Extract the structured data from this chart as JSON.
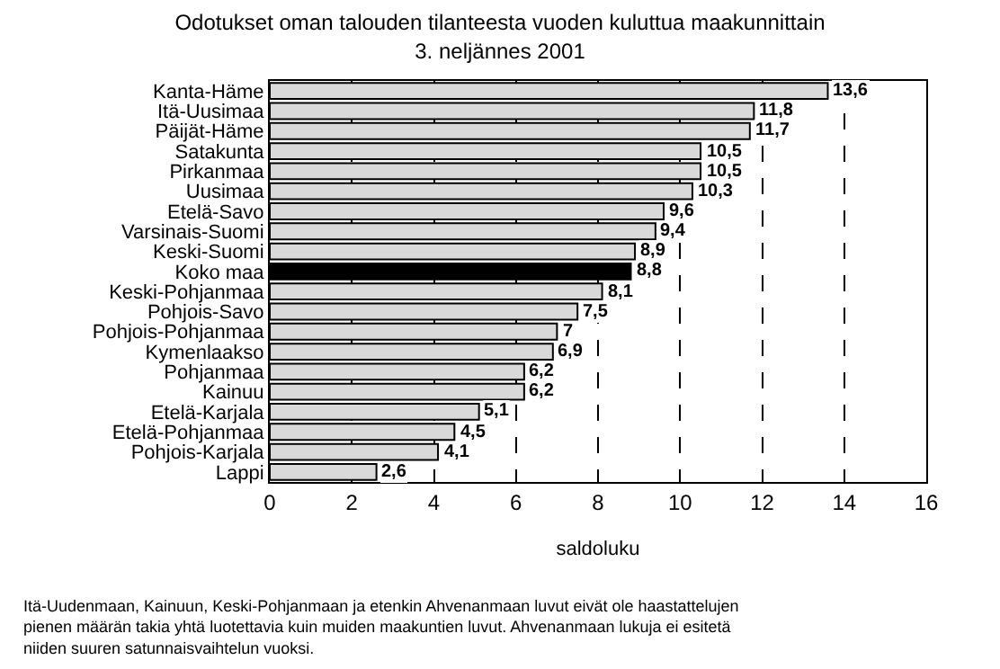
{
  "chart_data": {
    "type": "bar",
    "orientation": "horizontal",
    "title": "Odotukset oman talouden tilanteesta vuoden kuluttua maakunnittain",
    "subtitle": "3. neljännes 2001",
    "xlabel": "saldoluku",
    "categories": [
      "Kanta-Häme",
      "Itä-Uusimaa",
      "Päijät-Häme",
      "Satakunta",
      "Pirkanmaa",
      "Uusimaa",
      "Etelä-Savo",
      "Varsinais-Suomi",
      "Keski-Suomi",
      "Koko maa",
      "Keski-Pohjanmaa",
      "Pohjois-Savo",
      "Pohjois-Pohjanmaa",
      "Kymenlaakso",
      "Pohjanmaa",
      "Kainuu",
      "Etelä-Karjala",
      "Etelä-Pohjanmaa",
      "Pohjois-Karjala",
      "Lappi"
    ],
    "values": [
      13.6,
      11.8,
      11.7,
      10.5,
      10.5,
      10.3,
      9.6,
      9.4,
      8.9,
      8.8,
      8.1,
      7.5,
      7,
      6.9,
      6.2,
      6.2,
      5.1,
      4.5,
      4.1,
      2.6
    ],
    "value_labels": [
      "13,6",
      "11,8",
      "11,7",
      "10,5",
      "10,5",
      "10,3",
      "9,6",
      "9,4",
      "8,9",
      "8,8",
      "8,1",
      "7,5",
      "7",
      "6,9",
      "6,2",
      "6,2",
      "5,1",
      "4,5",
      "4,1",
      "2,6"
    ],
    "colors": [
      "#d9d9d9",
      "#d9d9d9",
      "#d9d9d9",
      "#d9d9d9",
      "#d9d9d9",
      "#d9d9d9",
      "#d9d9d9",
      "#d9d9d9",
      "#d9d9d9",
      "#000000",
      "#d9d9d9",
      "#d9d9d9",
      "#d9d9d9",
      "#d9d9d9",
      "#d9d9d9",
      "#d9d9d9",
      "#d9d9d9",
      "#d9d9d9",
      "#d9d9d9",
      "#d9d9d9"
    ],
    "xlim": [
      0,
      16
    ],
    "xticks": [
      0,
      2,
      4,
      6,
      8,
      10,
      12,
      14,
      16
    ],
    "grid": "x",
    "line_style": "dashed",
    "annotations": [
      "Itä-Uudenmaan, Kainuun, Keski-Pohjanmaan ja etenkin Ahvenanmaan luvut eivät ole haastattelujen pienen määrän takia yhtä luotettavia kuin muiden maakuntien luvut. Ahvenanmaan lukuja ei esitetä niiden suuren satunnaisvaihtelun vuoksi."
    ]
  }
}
